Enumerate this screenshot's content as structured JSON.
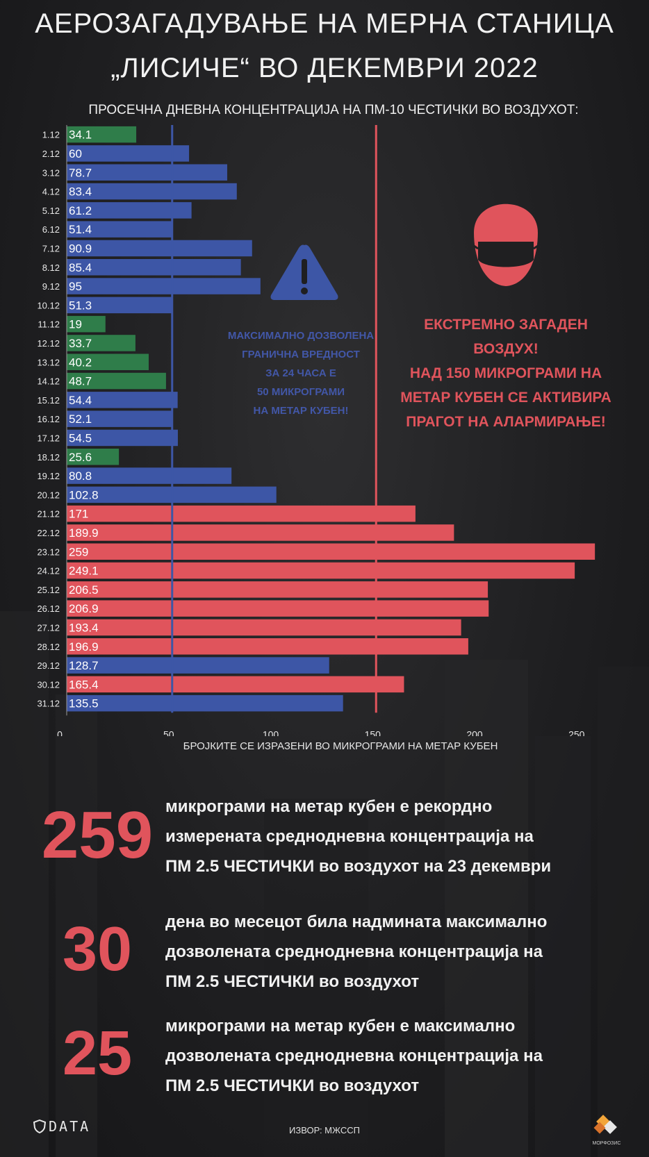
{
  "header": {
    "title_line1": "АЕРОЗАГАДУВАЊЕ НА МЕРНА СТАНИЦА",
    "title_line2": "„ЛИСИЧЕ“ ВО ДЕКЕМВРИ 2022",
    "subtitle": "ПРОСЕЧНА ДНЕВНА КОНЦЕНТРАЦИЈА НА ПМ-10 ЧЕСТИЧКИ ВО ВОЗДУХОТ:"
  },
  "chart_data": {
    "type": "bar",
    "orientation": "horizontal",
    "categories": [
      "1.12",
      "2.12",
      "3.12",
      "4.12",
      "5.12",
      "6.12",
      "7.12",
      "8.12",
      "9.12",
      "10.12",
      "11.12",
      "12.12",
      "13.12",
      "14.12",
      "15.12",
      "16.12",
      "17.12",
      "18.12",
      "19.12",
      "20.12",
      "21.12",
      "22.12",
      "23.12",
      "24.12",
      "25.12",
      "26.12",
      "27.12",
      "28.12",
      "29.12",
      "30.12",
      "31.12"
    ],
    "values": [
      34.1,
      60,
      78.7,
      83.4,
      61.2,
      51.4,
      90.9,
      85.4,
      95,
      51.3,
      19,
      33.7,
      40.2,
      48.7,
      54.4,
      52.1,
      54.5,
      25.6,
      80.8,
      102.8,
      171,
      189.9,
      259,
      249.1,
      206.5,
      206.9,
      193.4,
      196.9,
      128.7,
      165.4,
      135.5
    ],
    "value_labels": [
      "34.1",
      "60",
      "78.7",
      "83.4",
      "61.2",
      "51.4",
      "90.9",
      "85.4",
      "95",
      "51.3",
      "19",
      "33.7",
      "40.2",
      "48.7",
      "54.4",
      "52.1",
      "54.5",
      "25.6",
      "80.8",
      "102.8",
      "171",
      "189.9",
      "259",
      "249.1",
      "206.5",
      "206.9",
      "193.4",
      "196.9",
      "128.7",
      "165.4",
      "135.5"
    ],
    "xlim": [
      0,
      260
    ],
    "xticks": [
      0,
      50,
      100,
      150,
      200,
      250
    ],
    "xlabel": "БРОЈКИТЕ СЕ ИЗРАЗЕНИ ВО МИКРОГРАМИ НА МЕТАР КУБЕН",
    "reference_lines": [
      {
        "value": 50,
        "color": "#3d56a6"
      },
      {
        "value": 150,
        "color": "#e0545c"
      }
    ],
    "colors": {
      "low": "#2f7d4a",
      "moderate": "#3d56a6",
      "high": "#e0545c"
    },
    "grid": false
  },
  "annotations": {
    "limit_lines": [
      "МАКСИМАЛНО ДОЗВОЛЕНА",
      "ГРАНИЧНА ВРЕДНОСТ",
      "ЗА 24 ЧАСА Е",
      "50 МИКРОГРАМИ",
      "НА МЕТАР КУБЕН!"
    ],
    "alarm_lines": [
      "ЕКСТРЕМНО ЗАГАДЕН",
      "ВОЗДУХ!",
      "НАД 150 МИКРОГРАМИ НА",
      "МЕТАР КУБЕН СЕ АКТИВИРА",
      "ПРАГОТ НА АЛАРМИРАЊЕ!"
    ],
    "warning_icon": "warning-triangle-icon",
    "mask_icon": "face-mask-icon"
  },
  "stats": [
    {
      "number": "259",
      "lines": [
        "микрограми на метар кубен е рекордно",
        "измерената среднодневна концентрација на",
        "ПМ 2.5 ЧЕСТИЧКИ во воздухот на 23 декември"
      ]
    },
    {
      "number": "30",
      "lines": [
        "дена во месецот била надмината максимално",
        "дозволената среднодневна концентрација на",
        "ПМ 2.5 ЧЕСТИЧКИ во воздухот"
      ]
    },
    {
      "number": "25",
      "lines": [
        "микрограми на метар кубен е максимално",
        "дозволената среднодневна концентрација на",
        "ПМ 2.5 ЧЕСТИЧКИ во воздухот"
      ]
    }
  ],
  "footer": {
    "source": "ИЗВОР: МЖССП",
    "logo_left": "DATA",
    "logo_right": "МОРФОЗИС"
  }
}
